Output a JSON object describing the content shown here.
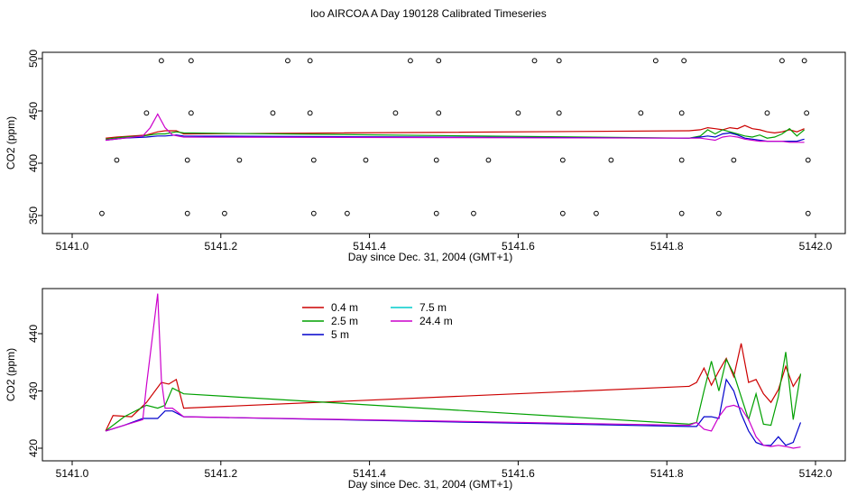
{
  "title": "loo AIRCOA A  Day 190128  Calibrated Timeseries",
  "colors": {
    "0.4 m": "#cc0000",
    "2.5 m": "#00a000",
    "5 m": "#0000cc",
    "7.5 m": "#00cccc",
    "24.4 m": "#cc00cc"
  },
  "chart_data": [
    {
      "type": "scatter",
      "xlabel": "Day since Dec. 31, 2004 (GMT+1)",
      "ylabel": "CO2 (ppm)",
      "xlim": [
        5141.0,
        5142.0
      ],
      "ylim": [
        350,
        500
      ],
      "xticks": [
        "5141.0",
        "5141.2",
        "5141.4",
        "5141.6",
        "5141.8",
        "5142.0"
      ],
      "yticks": [
        "350",
        "400",
        "450",
        "500"
      ],
      "points": [
        {
          "x": 5141.04,
          "y": 352
        },
        {
          "x": 5141.06,
          "y": 403
        },
        {
          "x": 5141.1,
          "y": 448
        },
        {
          "x": 5141.12,
          "y": 498
        },
        {
          "x": 5141.155,
          "y": 352
        },
        {
          "x": 5141.155,
          "y": 403
        },
        {
          "x": 5141.16,
          "y": 448
        },
        {
          "x": 5141.16,
          "y": 498
        },
        {
          "x": 5141.205,
          "y": 352
        },
        {
          "x": 5141.225,
          "y": 403
        },
        {
          "x": 5141.27,
          "y": 448
        },
        {
          "x": 5141.29,
          "y": 498
        },
        {
          "x": 5141.32,
          "y": 498
        },
        {
          "x": 5141.32,
          "y": 448
        },
        {
          "x": 5141.325,
          "y": 403
        },
        {
          "x": 5141.325,
          "y": 352
        },
        {
          "x": 5141.37,
          "y": 352
        },
        {
          "x": 5141.395,
          "y": 403
        },
        {
          "x": 5141.435,
          "y": 448
        },
        {
          "x": 5141.455,
          "y": 498
        },
        {
          "x": 5141.49,
          "y": 352
        },
        {
          "x": 5141.49,
          "y": 403
        },
        {
          "x": 5141.493,
          "y": 448
        },
        {
          "x": 5141.493,
          "y": 498
        },
        {
          "x": 5141.54,
          "y": 352
        },
        {
          "x": 5141.56,
          "y": 403
        },
        {
          "x": 5141.6,
          "y": 448
        },
        {
          "x": 5141.622,
          "y": 498
        },
        {
          "x": 5141.655,
          "y": 498
        },
        {
          "x": 5141.655,
          "y": 448
        },
        {
          "x": 5141.66,
          "y": 403
        },
        {
          "x": 5141.66,
          "y": 352
        },
        {
          "x": 5141.705,
          "y": 352
        },
        {
          "x": 5141.725,
          "y": 403
        },
        {
          "x": 5141.765,
          "y": 448
        },
        {
          "x": 5141.785,
          "y": 498
        },
        {
          "x": 5141.82,
          "y": 448
        },
        {
          "x": 5141.82,
          "y": 403
        },
        {
          "x": 5141.82,
          "y": 352
        },
        {
          "x": 5141.823,
          "y": 498
        },
        {
          "x": 5141.87,
          "y": 352
        },
        {
          "x": 5141.89,
          "y": 403
        },
        {
          "x": 5141.935,
          "y": 448
        },
        {
          "x": 5141.955,
          "y": 498
        },
        {
          "x": 5141.985,
          "y": 498
        },
        {
          "x": 5141.988,
          "y": 448
        },
        {
          "x": 5141.99,
          "y": 403
        },
        {
          "x": 5141.99,
          "y": 352
        }
      ],
      "series": [
        {
          "name": "0.4 m",
          "x": [
            5141.045,
            5141.06,
            5141.08,
            5141.1,
            5141.115,
            5141.125,
            5141.14,
            5141.15,
            5141.83,
            5141.845,
            5141.855,
            5141.865,
            5141.875,
            5141.885,
            5141.895,
            5141.905,
            5141.915,
            5141.925,
            5141.935,
            5141.945,
            5141.955,
            5141.965,
            5141.975,
            5141.985
          ],
          "y": [
            424,
            425,
            426,
            427,
            430,
            431,
            431,
            428,
            431,
            432,
            434,
            433,
            432,
            434,
            433,
            436,
            433,
            432,
            430,
            429,
            430,
            432,
            430,
            433
          ]
        },
        {
          "name": "2.5 m",
          "x": [
            5141.045,
            5141.07,
            5141.095,
            5141.115,
            5141.125,
            5141.14,
            5141.15,
            5141.83,
            5141.845,
            5141.855,
            5141.865,
            5141.875,
            5141.885,
            5141.895,
            5141.905,
            5141.915,
            5141.925,
            5141.935,
            5141.945,
            5141.955,
            5141.965,
            5141.975,
            5141.985
          ],
          "y": [
            423,
            425,
            426,
            428,
            428,
            430,
            429,
            424,
            426,
            432,
            428,
            432,
            430,
            428,
            426,
            425,
            427,
            424,
            425,
            428,
            433,
            426,
            432
          ]
        },
        {
          "name": "5 m",
          "x": [
            5141.045,
            5141.07,
            5141.1,
            5141.115,
            5141.125,
            5141.14,
            5141.15,
            5141.83,
            5141.845,
            5141.855,
            5141.865,
            5141.875,
            5141.885,
            5141.895,
            5141.905,
            5141.915,
            5141.925,
            5141.935,
            5141.945,
            5141.955,
            5141.965,
            5141.975,
            5141.985
          ],
          "y": [
            422,
            424,
            425,
            426,
            426,
            427,
            426,
            424,
            425,
            426,
            425,
            428,
            429,
            427,
            424,
            423,
            422,
            421,
            421,
            421,
            421,
            421,
            423
          ]
        },
        {
          "name": "24.4 m",
          "x": [
            5141.045,
            5141.07,
            5141.095,
            5141.105,
            5141.115,
            5141.125,
            5141.135,
            5141.15,
            5141.83,
            5141.845,
            5141.855,
            5141.865,
            5141.875,
            5141.885,
            5141.895,
            5141.905,
            5141.915,
            5141.925,
            5141.935,
            5141.945,
            5141.955,
            5141.965,
            5141.975,
            5141.985
          ],
          "y": [
            422,
            424,
            426,
            434,
            447,
            434,
            427,
            425,
            424,
            424,
            423,
            422,
            425,
            426,
            425,
            423,
            422,
            421,
            421,
            421,
            421,
            420,
            420,
            420
          ]
        }
      ]
    },
    {
      "type": "line",
      "xlabel": "Day since Dec. 31, 2004 (GMT+1)",
      "ylabel": "CO2 (ppm)",
      "xlim": [
        5141.0,
        5142.0
      ],
      "ylim": [
        419.5,
        447.5
      ],
      "xticks": [
        "5141.0",
        "5141.2",
        "5141.4",
        "5141.6",
        "5141.8",
        "5142.0"
      ],
      "yticks": [
        "420",
        "430",
        "440"
      ],
      "legend": [
        "0.4 m",
        "2.5 m",
        "5 m",
        "7.5 m",
        "24.4 m"
      ],
      "legend_position": "top-left",
      "series": [
        {
          "name": "0.4 m",
          "x": [
            5141.045,
            5141.055,
            5141.08,
            5141.1,
            5141.12,
            5141.13,
            5141.14,
            5141.15,
            5141.83,
            5141.84,
            5141.85,
            5141.86,
            5141.87,
            5141.88,
            5141.89,
            5141.9,
            5141.91,
            5141.92,
            5141.93,
            5141.94,
            5141.95,
            5141.96,
            5141.97,
            5141.98
          ],
          "y": [
            423,
            425.7,
            425.5,
            428,
            431.5,
            431.2,
            432,
            427,
            430.8,
            431.5,
            434,
            431,
            433.5,
            435.7,
            432.5,
            438.3,
            431.5,
            432,
            429.5,
            428,
            430.2,
            434.3,
            430.8,
            432.8
          ]
        },
        {
          "name": "2.5 m",
          "x": [
            5141.045,
            5141.07,
            5141.1,
            5141.115,
            5141.125,
            5141.135,
            5141.15,
            5141.83,
            5141.84,
            5141.85,
            5141.86,
            5141.87,
            5141.88,
            5141.89,
            5141.9,
            5141.91,
            5141.92,
            5141.93,
            5141.94,
            5141.95,
            5141.96,
            5141.97,
            5141.98
          ],
          "y": [
            423,
            425.5,
            427.5,
            427,
            427.5,
            430.5,
            429.5,
            424.2,
            424.5,
            430,
            435.2,
            430,
            435.5,
            433,
            429,
            425,
            429.5,
            424.2,
            424,
            429,
            436.8,
            425,
            433
          ]
        },
        {
          "name": "5 m",
          "x": [
            5141.045,
            5141.07,
            5141.095,
            5141.115,
            5141.125,
            5141.135,
            5141.15,
            5141.83,
            5141.84,
            5141.85,
            5141.86,
            5141.87,
            5141.88,
            5141.89,
            5141.9,
            5141.91,
            5141.92,
            5141.93,
            5141.94,
            5141.95,
            5141.96,
            5141.97,
            5141.98
          ],
          "y": [
            423,
            424,
            425.2,
            425.2,
            426.5,
            426.5,
            425.5,
            423.8,
            423.8,
            425.5,
            425.5,
            425.2,
            432,
            430,
            426,
            423,
            421,
            420.5,
            420.5,
            422,
            420.5,
            421,
            424.5
          ]
        },
        {
          "name": "24.4 m",
          "x": [
            5141.045,
            5141.07,
            5141.095,
            5141.1,
            5141.115,
            5141.12,
            5141.125,
            5141.135,
            5141.15,
            5141.83,
            5141.84,
            5141.85,
            5141.86,
            5141.87,
            5141.88,
            5141.89,
            5141.9,
            5141.91,
            5141.92,
            5141.93,
            5141.94,
            5141.95,
            5141.96,
            5141.97,
            5141.98
          ],
          "y": [
            423,
            424,
            425,
            431,
            447,
            432,
            427,
            427,
            425.5,
            424,
            424.5,
            423.3,
            423,
            425.5,
            427.2,
            427.5,
            427,
            425,
            422,
            420.5,
            420.3,
            420.5,
            420.3,
            420,
            420.2
          ]
        }
      ]
    }
  ]
}
